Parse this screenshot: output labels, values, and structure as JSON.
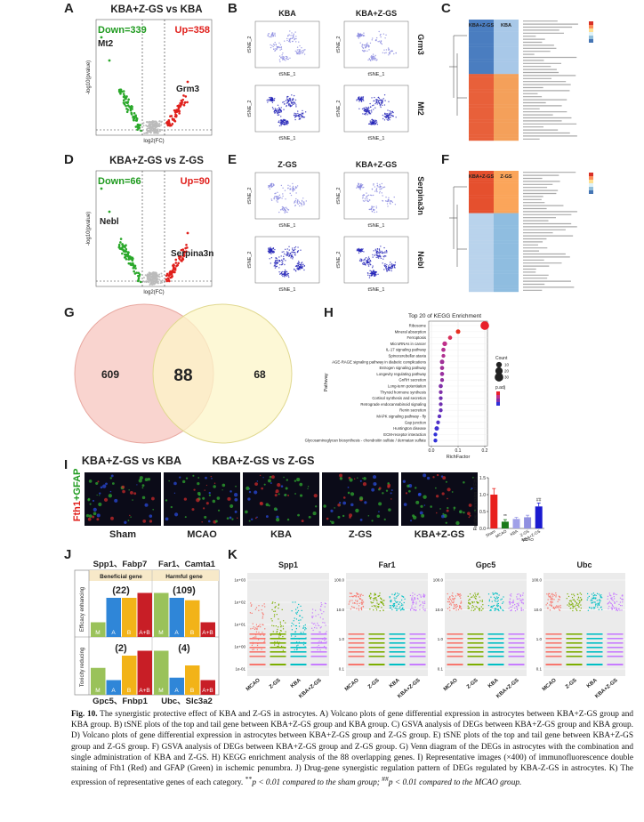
{
  "panels": {
    "A": {
      "letter": "A",
      "title": "KBA+Z-GS vs KBA",
      "down": "Down=339",
      "up": "Up=358",
      "genes": [
        "Mt2",
        "Grm3"
      ],
      "x_label": "log2(FC)",
      "y_label": "-log10(pvalue)"
    },
    "B": {
      "letter": "B",
      "columns": [
        "KBA",
        "KBA+Z-GS"
      ],
      "genes": [
        "Grm3",
        "Mt2"
      ],
      "x_label": "tSNE_1",
      "y_label": "tSNE_2"
    },
    "C": {
      "letter": "C",
      "columns": [
        "KBA+Z-GS",
        "KBA"
      ]
    },
    "D": {
      "letter": "D",
      "title": "KBA+Z-GS vs Z-GS",
      "down": "Down=66",
      "up": "Up=90",
      "genes": [
        "Nebl",
        "Serpina3n"
      ],
      "x_label": "log2(FC)",
      "y_label": "-log10(pvalue)"
    },
    "E": {
      "letter": "E",
      "columns": [
        "Z-GS",
        "KBA+Z-GS"
      ],
      "genes": [
        "Serpina3n",
        "Nebl"
      ],
      "x_label": "tSNE_1",
      "y_label": "tSNE_2"
    },
    "F": {
      "letter": "F",
      "columns": [
        "KBA+Z-GS",
        "Z-GS"
      ]
    },
    "G": {
      "letter": "G",
      "left_only": "609",
      "overlap": "88",
      "right_only": "68",
      "sets": [
        "KBA+Z-GS vs KBA",
        "KBA+Z-GS vs Z-GS"
      ]
    },
    "H": {
      "letter": "H"
    },
    "I": {
      "letter": "I",
      "stain": [
        "Fth1",
        "+GFAP"
      ],
      "images": [
        "Sham",
        "MCAO",
        "KBA",
        "Z-GS",
        "KBA+Z-GS"
      ]
    },
    "J": {
      "letter": "J",
      "top_genes": [
        "Spp1、Fabp7",
        "Far1、Camta1"
      ],
      "headers": [
        "Beneficial gene",
        "Harmful gene"
      ],
      "rows": [
        "Efficacy enhancing",
        "Toxicity reducing"
      ],
      "counts": [
        "(22)",
        "(109)",
        "(2)",
        "(4)"
      ],
      "bar_labels": [
        "M",
        "A",
        "B",
        "A+B"
      ],
      "bottom_genes": [
        "Gpc5、Fnbp1",
        "Ubc、Slc3a2"
      ]
    },
    "K": {
      "letter": "K",
      "genes": [
        "Spp1",
        "Far1",
        "Gpc5",
        "Ubc"
      ],
      "groups": [
        "MCAO",
        "Z-GS",
        "KBA",
        "KBA+Z-GS"
      ],
      "yticks": [
        [
          "1e+03",
          "1e+02",
          "1e+01",
          "1e+00",
          "1e-01"
        ],
        [
          "100.0",
          "10.0",
          "1.0",
          "0.1"
        ],
        [
          "100.0",
          "10.0",
          "1.0",
          "0.1"
        ],
        [
          "100.0",
          "10.0",
          "1.0",
          "0.1"
        ]
      ]
    }
  },
  "chart_data": [
    {
      "type": "dot",
      "title": "Top 20 of KEGG Enrichment",
      "x_label": "RichFactor",
      "y_label": "Pathway",
      "categories": [
        "Ribosome",
        "Mineral absorption",
        "Ferroptosis",
        "MicroRNAs in cancer",
        "IL-17 signaling pathway",
        "Spinocerebellar ataxia",
        "AGE-RAGE signaling pathway in diabetic complications",
        "Estrogen signaling pathway",
        "Longevity regulating pathway",
        "GnRH secretion",
        "Long-term potentiation",
        "Thyroid hormone synthesis",
        "Cortisol synthesis and secretion",
        "Retrograde endocannabinoid signaling",
        "Renin secretion",
        "MAPK signaling pathway - fly",
        "Gap junction",
        "Huntington disease",
        "ECM-receptor interaction",
        "Glycosaminoglycan biosynthesis - chondroitin sulfate / dermatan sulfate"
      ],
      "values": [
        0.2,
        0.1,
        0.07,
        0.05,
        0.045,
        0.045,
        0.04,
        0.04,
        0.04,
        0.04,
        0.035,
        0.035,
        0.035,
        0.035,
        0.035,
        0.03,
        0.025,
        0.02,
        0.015,
        0.015
      ],
      "sizes": [
        30,
        5,
        4,
        6,
        4,
        3,
        5,
        4,
        4,
        3,
        4,
        3,
        3,
        3,
        3,
        3,
        3,
        5,
        3,
        3
      ],
      "colors": [
        "#e8202a",
        "#e83020",
        "#d8305a",
        "#c0308a",
        "#b03090",
        "#b03090",
        "#a03098",
        "#a03098",
        "#9a30a0",
        "#9030a0",
        "#8030a8",
        "#8030a8",
        "#7030b0",
        "#7030b0",
        "#6830b8",
        "#6030c0",
        "#5030c8",
        "#4030d0",
        "#3030d8",
        "#3030d8"
      ],
      "size_legend_title": "Count",
      "size_legend": [
        10,
        20,
        30
      ],
      "color_legend_title": "p.adj",
      "xlim": [
        -0.01,
        0.21
      ],
      "xticks": [
        {
          "value": 0,
          "label": "0.0"
        },
        0.1,
        0.2
      ]
    },
    {
      "type": "bar",
      "y_label": "Relative expression of Fth1",
      "categories": [
        "Sham",
        "MCAO",
        "KBA",
        "Z-GS",
        "KBA+Z-GS"
      ],
      "group_label": "MCAO",
      "values": [
        1.0,
        0.2,
        0.28,
        0.33,
        0.65
      ],
      "errors": [
        0.18,
        0.06,
        0.05,
        0.06,
        0.1
      ],
      "colors": [
        "#e8201c",
        "#1a7a1a",
        "#a0a0e8",
        "#9090e0",
        "#1a1ad0"
      ],
      "annotations": [
        "",
        "**",
        "",
        "",
        "##"
      ],
      "ylim": [
        0,
        1.5
      ],
      "yticks": [
        {
          "value": 0,
          "label": "0.0"
        },
        {
          "value": 0.5,
          "label": "0.5"
        },
        {
          "value": 1,
          "label": "1.0"
        },
        {
          "value": 1.5,
          "label": "1.5"
        }
      ]
    }
  ],
  "caption": {
    "label": "Fig. 10.",
    "text": "The synergistic protective effect of KBA and Z-GS in astrocytes. A) Volcano plots of gene differential expression in astrocytes between KBA+Z-GS group and KBA group. B) tSNE plots of the top and tail gene between KBA+Z-GS group and KBA group. C) GSVA analysis of DEGs between KBA+Z-GS group and KBA group. D) Volcano plots of gene differential expression in astrocytes between KBA+Z-GS group and Z-GS group. E) tSNE plots of the top and tail gene between KBA+Z-GS group and Z-GS group. F) GSVA analysis of DEGs between KBA+Z-GS group and Z-GS group. G) Venn diagram of the DEGs in astrocytes with the combination and single administration of KBA and Z-GS. H) KEGG enrichment analysis of the 88 overlapping genes. I) Representative images (×400) of immunofluorescence double staining of Fth1 (Red) and GFAP (Green) in ischemic penumbra. J) Drug-gene synergistic regulation pattern of DEGs regulated by KBA-Z-GS in astrocytes. K) The expression of representative genes of each category.",
    "sig1": "**",
    "note1": "p < 0.01 compared to the sham group;",
    "sig2": "##",
    "note2": "p < 0.01 compared to the MCAO group."
  }
}
